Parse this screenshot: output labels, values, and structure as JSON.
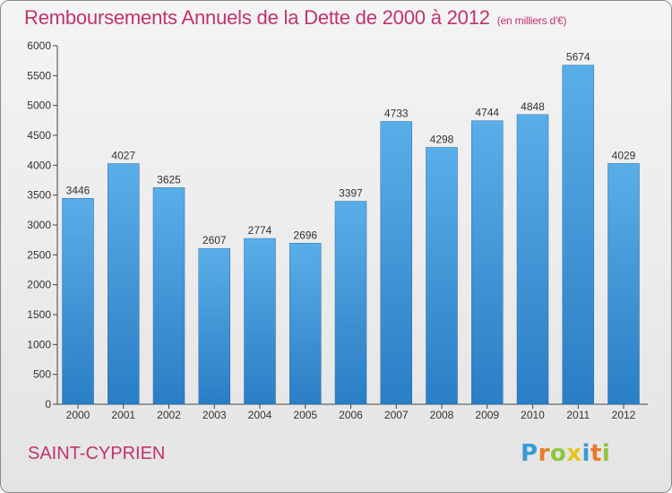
{
  "chart_data": {
    "type": "bar",
    "title": "Remboursements Annuels de la Dette de 2000 à 2012",
    "subtitle": "(en milliers d'€)",
    "categories": [
      "2000",
      "2001",
      "2002",
      "2003",
      "2004",
      "2005",
      "2006",
      "2007",
      "2008",
      "2009",
      "2010",
      "2011",
      "2012"
    ],
    "values": [
      3446,
      4027,
      3625,
      2607,
      2774,
      2696,
      3397,
      4733,
      4298,
      4744,
      4848,
      5674,
      4029
    ],
    "ylim": [
      0,
      6000
    ],
    "yticks": [
      0,
      500,
      1000,
      1500,
      2000,
      2500,
      3000,
      3500,
      4000,
      4500,
      5000,
      5500,
      6000
    ],
    "grid": false,
    "bar_color_top": "#5aaee8",
    "bar_color_bottom": "#2a7ec4"
  },
  "footer": {
    "city": "SAINT-CYPRIEN",
    "logo_letters": [
      "P",
      "r",
      "o",
      "x",
      "i",
      "t",
      "i"
    ],
    "logo_colors": [
      "#3a9ad9",
      "#e87a2a",
      "#8cc63e",
      "#e8c21e",
      "#3a9ad9",
      "#e87a2a",
      "#8cc63e"
    ]
  },
  "theme": {
    "title_color": "#c0336e"
  }
}
